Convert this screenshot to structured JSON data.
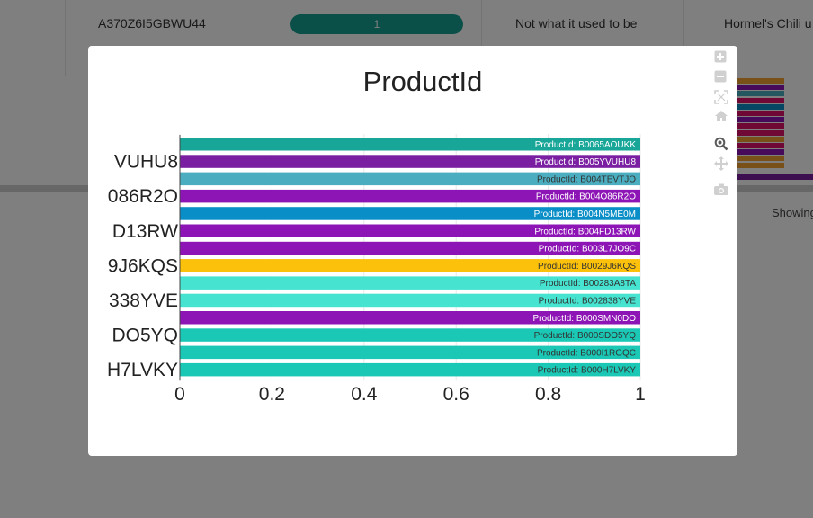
{
  "background_row": {
    "review_id": "A370Z6I5GBWU44",
    "helpfulness": "1",
    "summary": "Not what it used to be",
    "product_title": "Hormel's Chili u"
  },
  "background_footer": {
    "showing_text": "Showing"
  },
  "colors": {
    "teal": "#17a697",
    "purple": "#7b1fa2",
    "light_blue": "#4aaec0",
    "violet": "#8e15b5",
    "blue": "#0a8ec7",
    "gold": "#fcc10a",
    "aqua": "#45e3d0",
    "turquoise": "#1ac8b5"
  },
  "toolbar": [
    {
      "name": "zoom-in-icon"
    },
    {
      "name": "zoom-out-icon"
    },
    {
      "name": "autoscale-icon"
    },
    {
      "name": "reset-axes-icon"
    },
    {
      "name": "zoom-icon"
    },
    {
      "name": "pan-icon"
    },
    {
      "name": "camera-icon"
    }
  ],
  "chart_data": {
    "type": "bar",
    "orientation": "horizontal",
    "title": "ProductId",
    "xlim": [
      0,
      1
    ],
    "xticks": [
      "0",
      "0.2",
      "0.4",
      "0.6",
      "0.8",
      "1"
    ],
    "y_tick_labels": [
      "VUHU8",
      "086R2O",
      "D13RW",
      "9J6KQS",
      "338YVE",
      "DO5YQ",
      "H7LVKY"
    ],
    "categories": [
      "B0065AOUKK",
      "B005YVUHU8",
      "B004TEVTJO",
      "B004O86R2O",
      "B004N5ME0M",
      "B004FD13RW",
      "B003L7JO9C",
      "B0029J6KQS",
      "B00283A8TA",
      "B002838YVE",
      "B000SMN0DO",
      "B000SDO5YQ",
      "B000I1RGQC",
      "B000H7LVKY"
    ],
    "values": [
      1,
      1,
      1,
      1,
      1,
      1,
      1,
      1,
      1,
      1,
      1,
      1,
      1,
      1
    ],
    "bar_labels": [
      "ProductId: B0065AOUKK",
      "ProductId: B005YVUHU8",
      "ProductId: B004TEVTJO",
      "ProductId: B004O86R2O",
      "ProductId: B004N5ME0M",
      "ProductId: B004FD13RW",
      "ProductId: B003L7JO9C",
      "ProductId: B0029J6KQS",
      "ProductId: B00283A8TA",
      "ProductId: B002838YVE",
      "ProductId: B000SMN0DO",
      "ProductId: B000SDO5YQ",
      "ProductId: B000I1RGQC",
      "ProductId: B000H7LVKY"
    ],
    "bar_colors": [
      "#17a697",
      "#7b1fa2",
      "#4aaec0",
      "#8e15b5",
      "#0a8ec7",
      "#8e15b5",
      "#8e15b5",
      "#fcc10a",
      "#45e3d0",
      "#45e3d0",
      "#8e15b5",
      "#1ac8b5",
      "#1ac8b5",
      "#1ac8b5"
    ],
    "label_colors": [
      "#ffffff",
      "#ffffff",
      "#333333",
      "#ffffff",
      "#ffffff",
      "#ffffff",
      "#ffffff",
      "#333333",
      "#333333",
      "#333333",
      "#ffffff",
      "#333333",
      "#333333",
      "#333333"
    ],
    "grid": true,
    "legend": "none"
  }
}
